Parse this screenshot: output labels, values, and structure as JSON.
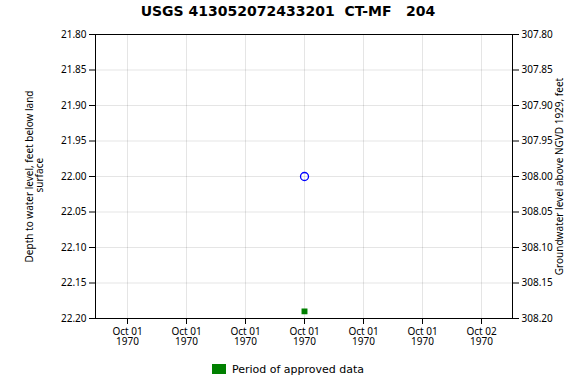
{
  "chart_data": {
    "type": "scatter",
    "title": "USGS 413052072433201  CT-MF   204",
    "ylabel": "Depth to water level, feet below land\n surface",
    "y2label": "Groundwater level above NGVD 1929, feet",
    "categories": [
      "Oct 01\n1970",
      "Oct 01\n1970",
      "Oct 01\n1970",
      "Oct 01\n1970",
      "Oct 01\n1970",
      "Oct 01\n1970",
      "Oct 02\n1970"
    ],
    "series": [
      {
        "values": [
          null,
          null,
          null,
          22.0,
          null,
          null,
          null
        ],
        "color": "#0000ff",
        "marker": "circle_open"
      },
      {
        "name": "Period of approved data",
        "values": [
          null,
          null,
          null,
          22.19,
          null,
          null,
          null
        ],
        "color": "#008000",
        "marker": "square"
      }
    ],
    "ylim": [
      22.2,
      21.8
    ],
    "yticks": [
      {
        "value": 21.8,
        "label": "21.80"
      },
      21.85,
      {
        "value": 21.9,
        "label": "21.90"
      },
      21.95,
      {
        "value": 22.0,
        "label": "22.00"
      },
      22.05,
      {
        "value": 22.1,
        "label": "22.10"
      },
      22.15,
      {
        "value": 22.2,
        "label": "22.20"
      }
    ],
    "y2lim": [
      308.2,
      307.8
    ],
    "y2ticks": [
      {
        "value": 308.2,
        "label": "308.20"
      },
      308.15,
      {
        "value": 308.1,
        "label": "308.10"
      },
      308.05,
      {
        "value": 308.0,
        "label": "308.00"
      },
      307.95,
      {
        "value": 307.9,
        "label": "307.90"
      },
      307.85,
      {
        "value": 307.8,
        "label": "307.80"
      }
    ],
    "grid": true,
    "legend": "bottom"
  }
}
